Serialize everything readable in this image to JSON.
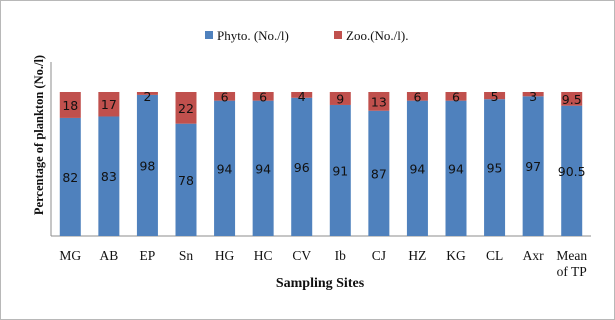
{
  "chart_data": {
    "type": "bar",
    "stacked": true,
    "title": "",
    "xlabel": "Sampling Sites",
    "ylabel": "Percentage of plankton (No./l)",
    "ylim": [
      0,
      100
    ],
    "legend_position": "top-center",
    "grid": false,
    "categories": [
      "MG",
      "AB",
      "EP",
      "Sn",
      "HG",
      "HC",
      "CV",
      "Ib",
      "CJ",
      "HZ",
      "KG",
      "CL",
      "Axr",
      "Mean of TP"
    ],
    "series": [
      {
        "name": "Phyto. (No./l)",
        "color": "#4f81bd",
        "values": [
          82,
          83,
          98,
          78,
          94,
          94,
          96,
          91,
          87,
          94,
          94,
          95,
          97,
          90.5
        ]
      },
      {
        "name": "Zoo.(No./l).",
        "color": "#c0504d",
        "values": [
          18,
          17,
          2,
          22,
          6,
          6,
          4,
          9,
          13,
          6,
          6,
          5,
          3,
          9.5
        ]
      }
    ]
  }
}
